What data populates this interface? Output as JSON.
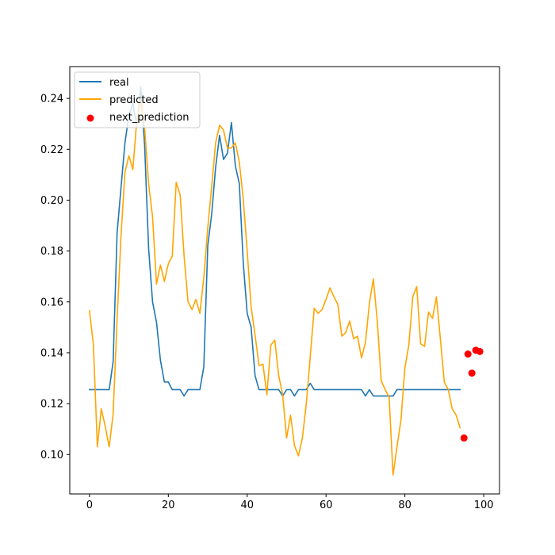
{
  "chart_data": {
    "type": "line",
    "title": "",
    "xlabel": "",
    "ylabel": "",
    "xlim": [
      -5,
      104
    ],
    "ylim": [
      0.0845,
      0.2525
    ],
    "xticks": [
      0,
      20,
      40,
      60,
      80,
      100
    ],
    "yticks": [
      0.1,
      0.12,
      0.14,
      0.16,
      0.18,
      0.2,
      0.22,
      0.24
    ],
    "ytick_labels": [
      "0.10",
      "0.12",
      "0.14",
      "0.16",
      "0.18",
      "0.20",
      "0.22",
      "0.24"
    ],
    "legend_position": "top-left",
    "series": [
      {
        "name": "real",
        "kind": "line",
        "color": "#1f77b4",
        "x": [
          0,
          1,
          2,
          3,
          4,
          5,
          6,
          7,
          8,
          9,
          10,
          11,
          12,
          13,
          14,
          15,
          16,
          17,
          18,
          19,
          20,
          21,
          22,
          23,
          24,
          25,
          26,
          27,
          28,
          29,
          30,
          31,
          32,
          33,
          34,
          35,
          36,
          37,
          38,
          39,
          40,
          41,
          42,
          43,
          44,
          45,
          46,
          47,
          48,
          49,
          50,
          51,
          52,
          53,
          54,
          55,
          56,
          57,
          58,
          59,
          60,
          61,
          62,
          63,
          64,
          65,
          66,
          67,
          68,
          69,
          70,
          71,
          72,
          73,
          74,
          75,
          76,
          77,
          78,
          79,
          80,
          81,
          82,
          83,
          84,
          85,
          86,
          87,
          88,
          89,
          90,
          91,
          92,
          93,
          94
        ],
        "y": [
          0.1255,
          0.1255,
          0.1255,
          0.1255,
          0.1255,
          0.1255,
          0.1365,
          0.187,
          0.205,
          0.2225,
          0.2335,
          0.238,
          0.229,
          0.2445,
          0.221,
          0.181,
          0.16,
          0.152,
          0.137,
          0.1285,
          0.1285,
          0.1255,
          0.1255,
          0.1255,
          0.123,
          0.1255,
          0.1255,
          0.1255,
          0.1255,
          0.1345,
          0.182,
          0.1945,
          0.213,
          0.2255,
          0.216,
          0.2185,
          0.2305,
          0.2135,
          0.2065,
          0.1755,
          0.1555,
          0.15,
          0.131,
          0.1255,
          0.1255,
          0.1255,
          0.1255,
          0.1255,
          0.1255,
          0.123,
          0.1255,
          0.1255,
          0.123,
          0.1255,
          0.1255,
          0.1255,
          0.128,
          0.1255,
          0.1255,
          0.1255,
          0.1255,
          0.1255,
          0.1255,
          0.1255,
          0.1255,
          0.1255,
          0.1255,
          0.1255,
          0.1255,
          0.1255,
          0.123,
          0.1255,
          0.123,
          0.123,
          0.123,
          0.123,
          0.123,
          0.123,
          0.1255,
          0.1255,
          0.1255,
          0.1255,
          0.1255,
          0.1255,
          0.1255,
          0.1255,
          0.1255,
          0.1255,
          0.1255,
          0.1255,
          0.1255,
          0.1255,
          0.1255,
          0.1255,
          0.1255
        ]
      },
      {
        "name": "predicted",
        "kind": "line",
        "color": "#ffa500",
        "x": [
          0,
          1,
          2,
          3,
          4,
          5,
          6,
          7,
          8,
          9,
          10,
          11,
          12,
          13,
          14,
          15,
          16,
          17,
          18,
          19,
          20,
          21,
          22,
          23,
          24,
          25,
          26,
          27,
          28,
          29,
          30,
          31,
          32,
          33,
          34,
          35,
          36,
          37,
          38,
          39,
          40,
          41,
          42,
          43,
          44,
          45,
          46,
          47,
          48,
          49,
          50,
          51,
          52,
          53,
          54,
          55,
          56,
          57,
          58,
          59,
          60,
          61,
          62,
          63,
          64,
          65,
          66,
          67,
          68,
          69,
          70,
          71,
          72,
          73,
          74,
          75,
          76,
          77,
          78,
          79,
          80,
          81,
          82,
          83,
          84,
          85,
          86,
          87,
          88,
          89,
          90,
          91,
          92,
          93,
          94
        ],
        "y": [
          0.1565,
          0.143,
          0.103,
          0.118,
          0.111,
          0.103,
          0.116,
          0.153,
          0.186,
          0.211,
          0.2175,
          0.212,
          0.2315,
          0.2395,
          0.228,
          0.2065,
          0.1935,
          0.167,
          0.1745,
          0.168,
          0.175,
          0.178,
          0.207,
          0.202,
          0.178,
          0.16,
          0.157,
          0.161,
          0.1555,
          0.1695,
          0.189,
          0.2055,
          0.2225,
          0.2295,
          0.2275,
          0.2205,
          0.2205,
          0.2225,
          0.215,
          0.2005,
          0.18,
          0.158,
          0.147,
          0.135,
          0.1355,
          0.1235,
          0.143,
          0.145,
          0.131,
          0.1235,
          0.1065,
          0.1155,
          0.1035,
          0.0995,
          0.1065,
          0.12,
          0.1385,
          0.1575,
          0.1555,
          0.157,
          0.161,
          0.1655,
          0.162,
          0.159,
          0.1465,
          0.148,
          0.1525,
          0.1455,
          0.1465,
          0.138,
          0.144,
          0.1595,
          0.169,
          0.1525,
          0.129,
          0.1255,
          0.1225,
          0.092,
          0.103,
          0.1135,
          0.134,
          0.143,
          0.162,
          0.166,
          0.1435,
          0.1425,
          0.156,
          0.1535,
          0.162,
          0.1455,
          0.1285,
          0.1255,
          0.118,
          0.1155,
          0.1105
        ]
      },
      {
        "name": "next_prediction",
        "kind": "scatter",
        "color": "#ff0000",
        "x": [
          95,
          96,
          97,
          98,
          99
        ],
        "y": [
          0.1065,
          0.1395,
          0.132,
          0.141,
          0.1405
        ]
      }
    ]
  }
}
